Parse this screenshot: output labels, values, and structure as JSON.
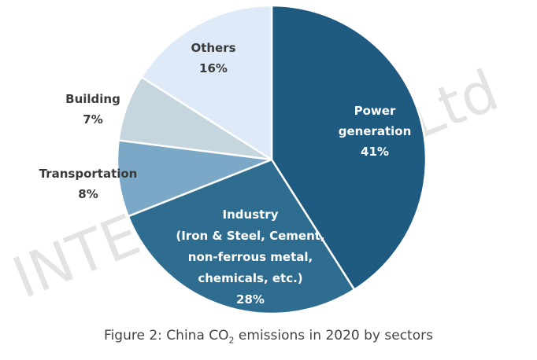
{
  "chart_data": {
    "type": "pie",
    "slices": [
      {
        "label_lines": [
          "Power",
          "generation"
        ],
        "pct_label": "41%",
        "value": 41,
        "color": "#1f5b80",
        "text_color": "#ffffff"
      },
      {
        "label_lines": [
          "Industry",
          "(Iron & Steel, Cement,",
          "non-ferrous metal,",
          "chemicals, etc.)"
        ],
        "pct_label": "28%",
        "value": 28,
        "color": "#2f6d90",
        "text_color": "#ffffff"
      },
      {
        "label_lines": [
          "Transportation"
        ],
        "pct_label": "8%",
        "value": 8,
        "color": "#7ba8c6",
        "text_color": "#3a3a3a"
      },
      {
        "label_lines": [
          "Building"
        ],
        "pct_label": "7%",
        "value": 7,
        "color": "#c6d6df",
        "text_color": "#3a3a3a"
      },
      {
        "label_lines": [
          "Others"
        ],
        "pct_label": "16%",
        "value": 16,
        "color": "#deeaf8",
        "text_color": "#3a3a3a"
      }
    ]
  },
  "caption": {
    "prefix": "Figure 2: China CO",
    "subscript": "2",
    "suffix": " emissions in 2020 by sectors"
  },
  "watermark": {
    "text": "INTEGRAL Co., Ltd",
    "color": "#e3e3e3"
  }
}
